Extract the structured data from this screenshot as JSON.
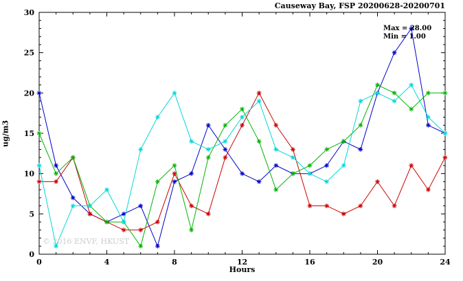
{
  "title": "Causeway Bay, FSP 20200628-20200701",
  "annotations": {
    "max_label": "Max = 28.00",
    "min_label": "Min = 1.00"
  },
  "watermark": "© 2016 ENVF, HKUST",
  "chart_data": {
    "type": "line",
    "title": "Causeway Bay, FSP 20200628-20200701",
    "xlabel": "Hours",
    "ylabel": "ug/m3",
    "xlim": [
      0,
      24
    ],
    "ylim": [
      0,
      30
    ],
    "xticks": [
      0,
      4,
      8,
      12,
      16,
      20,
      24
    ],
    "yticks": [
      0,
      5,
      10,
      15,
      20,
      25,
      30
    ],
    "grid": false,
    "legend": "none",
    "max_value": 28.0,
    "min_value": 1.0,
    "x": [
      0,
      1,
      2,
      3,
      4,
      5,
      6,
      7,
      8,
      9,
      10,
      11,
      12,
      13,
      14,
      15,
      16,
      17,
      18,
      19,
      20,
      21,
      22,
      23,
      24
    ],
    "series": [
      {
        "name": "blue",
        "color": "#0000cd",
        "values": [
          20,
          11,
          7,
          5,
          4,
          5,
          6,
          1,
          9,
          10,
          16,
          13,
          10,
          9,
          11,
          10,
          10,
          11,
          14,
          13,
          20,
          25,
          28,
          16,
          15
        ]
      },
      {
        "name": "red",
        "color": "#cc0000",
        "values": [
          9,
          9,
          12,
          5,
          4,
          3,
          3,
          4,
          10,
          6,
          5,
          12,
          16,
          20,
          16,
          13,
          6,
          6,
          5,
          6,
          9,
          6,
          11,
          8,
          12
        ]
      },
      {
        "name": "green",
        "color": "#00b400",
        "values": [
          15,
          10,
          12,
          6,
          4,
          4,
          1,
          9,
          11,
          3,
          12,
          16,
          18,
          14,
          8,
          10,
          11,
          13,
          14,
          16,
          21,
          20,
          18,
          20,
          20
        ]
      },
      {
        "name": "cyan",
        "color": "#00d8d8",
        "values": [
          11,
          1,
          6,
          6,
          8,
          4,
          13,
          17,
          20,
          14,
          13,
          14,
          17,
          19,
          13,
          12,
          10,
          9,
          11,
          19,
          20,
          19,
          21,
          17,
          15
        ]
      }
    ]
  }
}
